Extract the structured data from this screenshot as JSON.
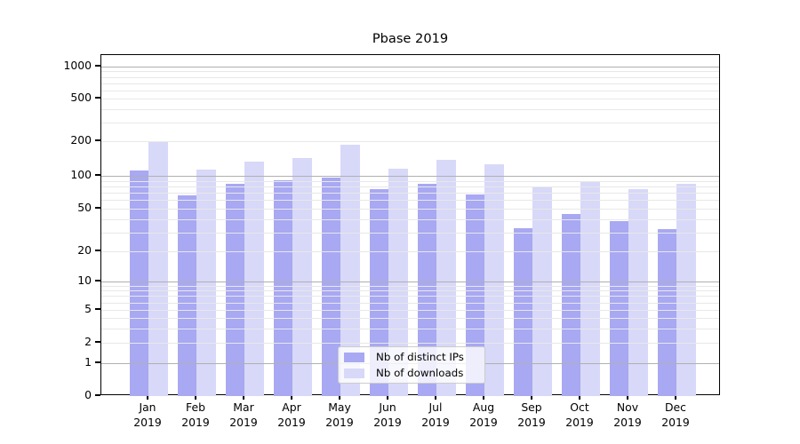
{
  "title": "Pbase 2019",
  "chart_data": {
    "type": "bar",
    "title": "Pbase 2019",
    "categories": [
      "Jan",
      "Feb",
      "Mar",
      "Apr",
      "May",
      "Jun",
      "Jul",
      "Aug",
      "Sep",
      "Oct",
      "Nov",
      "Dec"
    ],
    "category_year": "2019",
    "series": [
      {
        "name": "Nb of distinct IPs",
        "color": "#a8a8f3",
        "values": [
          112,
          66,
          85,
          91,
          97,
          75,
          84,
          68,
          33,
          45,
          38,
          32
        ]
      },
      {
        "name": "Nb of downloads",
        "color": "#d8d8f8",
        "values": [
          200,
          113,
          132,
          142,
          187,
          115,
          138,
          125,
          78,
          89,
          76,
          84
        ]
      }
    ],
    "yscale": "symlog",
    "yticks": [
      0,
      1,
      2,
      5,
      10,
      20,
      50,
      100,
      200,
      500,
      1000
    ],
    "ylim": [
      0,
      1350
    ],
    "grid": "horizontal, log major + minor",
    "legend_position": "lower center",
    "colors": {
      "major_grid": "#b0b0b0",
      "minor_grid": "#e8e8e8",
      "axis": "#000000",
      "legend_border": "#cccccc",
      "legend_background": "rgba(255,255,255,0.8)"
    }
  }
}
